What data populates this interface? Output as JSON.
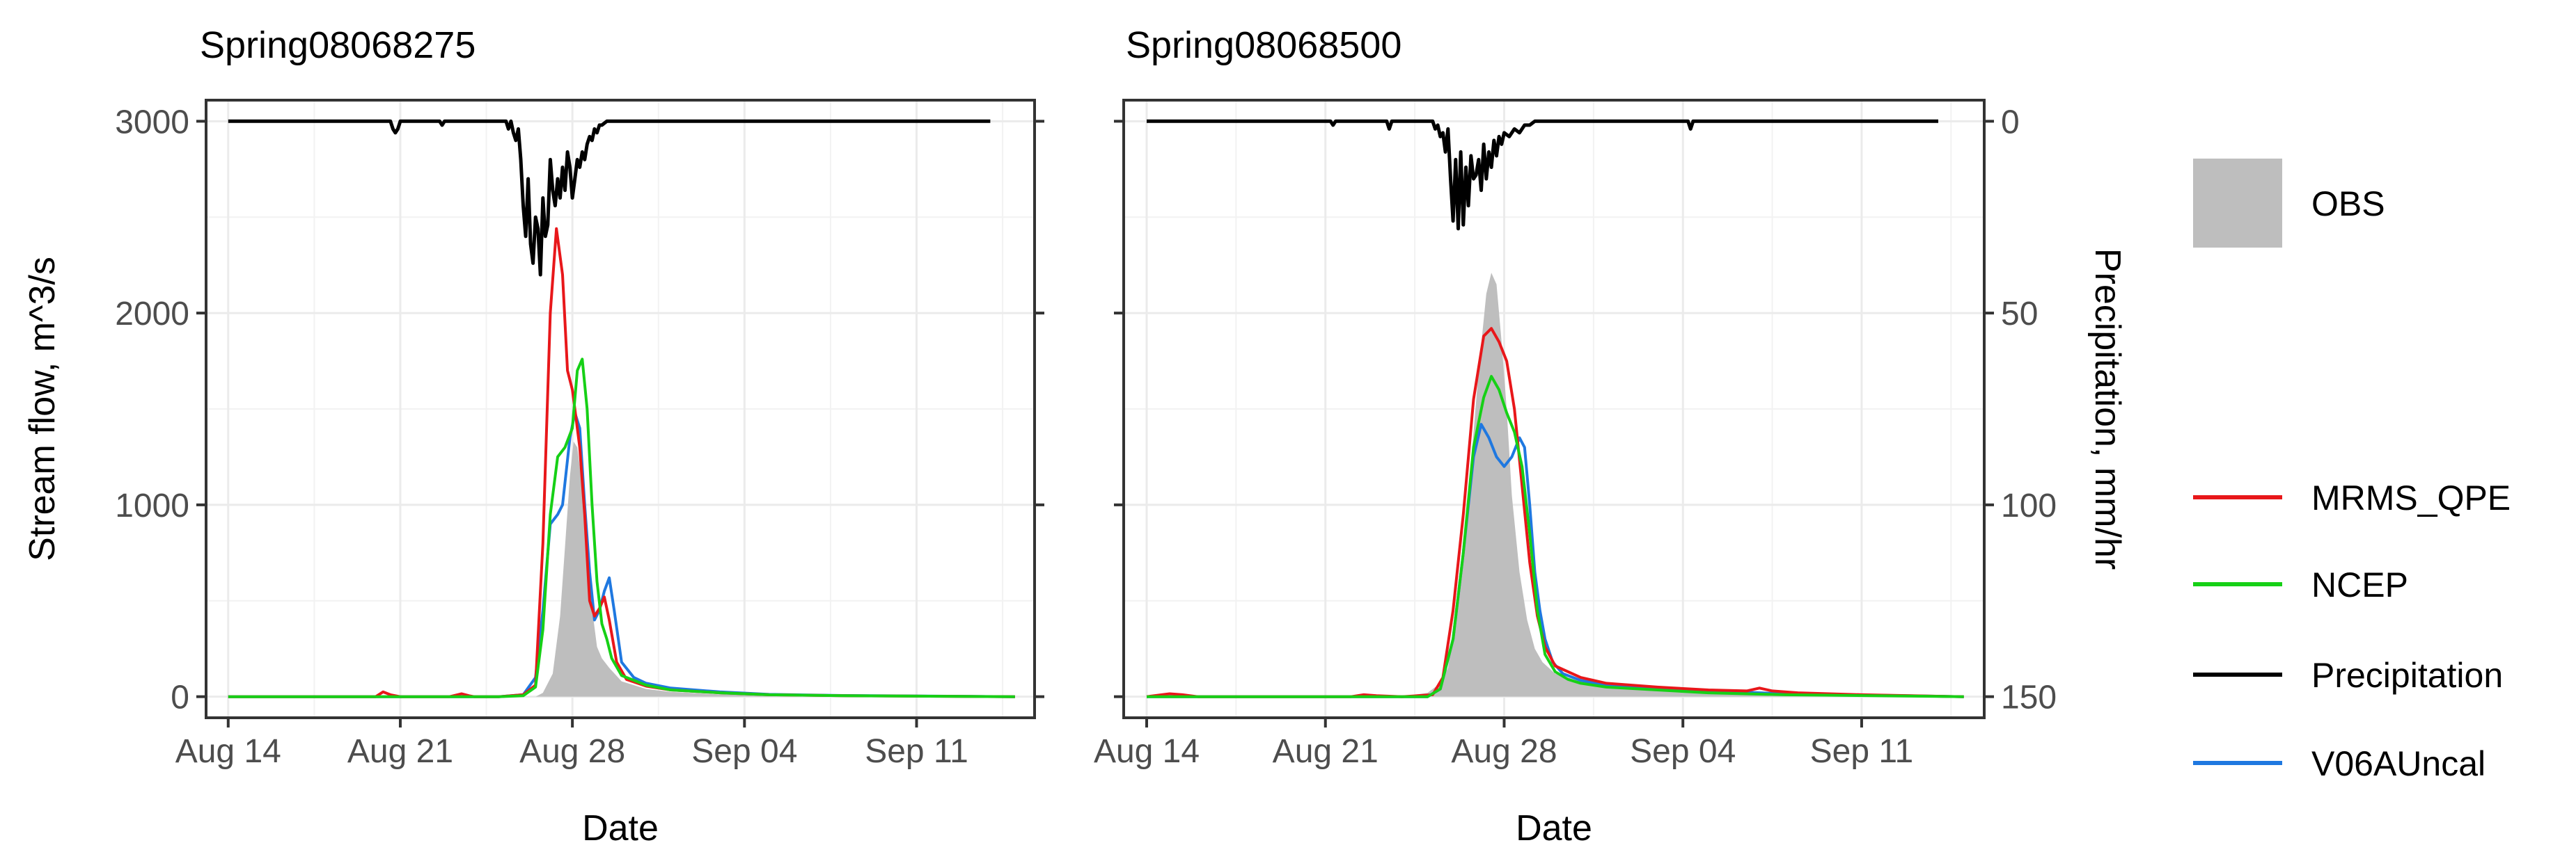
{
  "chart_data": {
    "type": "line",
    "x_axis": {
      "label": "Date",
      "ticks": [
        "Aug 14",
        "Aug 21",
        "Aug 28",
        "Sep 04",
        "Sep 11"
      ],
      "tick_days": [
        0,
        7,
        14,
        21,
        28
      ],
      "range_days": [
        -0.9,
        32.8
      ]
    },
    "y_axis_left": {
      "label": "Stream flow, m^3/s",
      "ticks": [
        "0",
        "1000",
        "2000",
        "3000"
      ],
      "tick_values": [
        0,
        1000,
        2000,
        3000
      ],
      "range": [
        -110,
        3110
      ]
    },
    "y_axis_right": {
      "label": "Precipitation, mm/hr",
      "ticks": [
        "0",
        "50",
        "100",
        "150"
      ],
      "tick_values": [
        0,
        50,
        100,
        150
      ],
      "inverted": true,
      "note": "precipitation hangs downward from the top (0 at 3000 flow, 150 at 0 flow)"
    },
    "grid": true,
    "legend": {
      "placement": "right",
      "entries": [
        {
          "label": "OBS",
          "kind": "area",
          "color": "#bebebe"
        },
        {
          "label": "MRMS_QPE",
          "kind": "line",
          "color": "#e8171a"
        },
        {
          "label": "NCEP",
          "kind": "line",
          "color": "#16d016"
        },
        {
          "label": "Precipitation",
          "kind": "line",
          "color": "#000000"
        },
        {
          "label": "V06AUncal",
          "kind": "line",
          "color": "#1f78e0"
        }
      ]
    },
    "panels": [
      {
        "title": "Spring08068275",
        "series": {
          "OBS": {
            "x": [
              0,
              11,
              12.5,
              12.8,
              13.2,
              13.5,
              13.7,
              13.9,
              14.05,
              14.2,
              14.4,
              14.6,
              14.8,
              15,
              15.2,
              15.5,
              16,
              17,
              18,
              20,
              22,
              25,
              32
            ],
            "y": [
              0,
              0,
              0,
              20,
              120,
              420,
              780,
              1150,
              1330,
              1300,
              1100,
              780,
              460,
              260,
              200,
              150,
              80,
              40,
              25,
              12,
              8,
              3,
              0
            ]
          },
          "MRMS_QPE": {
            "x": [
              0,
              6,
              6.3,
              6.6,
              7,
              9,
              9.5,
              9.8,
              10,
              11,
              12,
              12.5,
              12.8,
              13.1,
              13.35,
              13.6,
              13.8,
              14,
              14.1,
              14.3,
              14.5,
              14.7,
              14.9,
              15.1,
              15.3,
              15.5,
              15.8,
              16.2,
              17,
              18,
              20,
              22,
              25,
              32
            ],
            "y": [
              0,
              0,
              25,
              10,
              0,
              0,
              15,
              5,
              0,
              0,
              10,
              60,
              800,
              2000,
              2440,
              2200,
              1700,
              1600,
              1500,
              1300,
              950,
              500,
              420,
              460,
              520,
              400,
              180,
              90,
              55,
              35,
              20,
              10,
              5,
              0
            ]
          },
          "NCEP": {
            "x": [
              0,
              11,
              12,
              12.5,
              12.8,
              13.1,
              13.4,
              13.7,
              14,
              14.2,
              14.4,
              14.6,
              14.8,
              15,
              15.2,
              15.4,
              15.6,
              16,
              17,
              18,
              20,
              22,
              25,
              32
            ],
            "y": [
              0,
              0,
              5,
              50,
              350,
              950,
              1250,
              1300,
              1400,
              1700,
              1760,
              1500,
              1000,
              600,
              380,
              300,
              200,
              110,
              60,
              35,
              20,
              10,
              5,
              0
            ]
          },
          "V06AUncal": {
            "x": [
              0,
              11,
              12,
              12.5,
              12.8,
              13.1,
              13.4,
              13.6,
              13.9,
              14.1,
              14.3,
              14.5,
              14.7,
              14.9,
              15.1,
              15.3,
              15.5,
              15.7,
              16,
              16.5,
              17,
              18,
              20,
              22,
              25,
              32
            ],
            "y": [
              0,
              0,
              10,
              100,
              450,
              900,
              950,
              1000,
              1350,
              1480,
              1400,
              1000,
              650,
              400,
              450,
              550,
              620,
              450,
              180,
              100,
              70,
              45,
              25,
              12,
              6,
              0
            ]
          },
          "Precipitation": {
            "x": [
              0,
              6.6,
              6.7,
              6.8,
              6.9,
              7,
              8.6,
              8.7,
              8.8,
              11.3,
              11.4,
              11.5,
              11.6,
              11.7,
              11.8,
              11.9,
              12,
              12.1,
              12.2,
              12.3,
              12.4,
              12.5,
              12.6,
              12.7,
              12.8,
              12.9,
              13,
              13.1,
              13.2,
              13.3,
              13.4,
              13.5,
              13.6,
              13.7,
              13.8,
              13.9,
              14,
              14.1,
              14.2,
              14.3,
              14.4,
              14.5,
              14.6,
              14.7,
              14.8,
              14.9,
              15,
              15.1,
              15.2,
              15.4,
              15.6,
              31
            ],
            "y": [
              0,
              0,
              2,
              3,
              2,
              0,
              0,
              1,
              0,
              0,
              2,
              0,
              3,
              5,
              2,
              10,
              22,
              30,
              15,
              32,
              37,
              25,
              28,
              40,
              20,
              30,
              27,
              10,
              18,
              22,
              15,
              20,
              12,
              18,
              8,
              12,
              20,
              15,
              10,
              12,
              8,
              10,
              6,
              4,
              5,
              2,
              3,
              1,
              1,
              0,
              0,
              0
            ]
          }
        }
      },
      {
        "title": "Spring08068500",
        "series": {
          "OBS": {
            "x": [
              0,
              10,
              11,
              11.5,
              11.8,
              12.2,
              12.6,
              13,
              13.3,
              13.5,
              13.7,
              13.9,
              14.1,
              14.3,
              14.6,
              14.9,
              15.2,
              15.5,
              16,
              17,
              18,
              20,
              22,
              25,
              32
            ],
            "y": [
              0,
              0,
              20,
              70,
              150,
              500,
              1050,
              1700,
              2100,
              2210,
              2150,
              1850,
              1500,
              1050,
              650,
              400,
              250,
              180,
              120,
              80,
              60,
              40,
              25,
              12,
              0
            ]
          },
          "MRMS_QPE": {
            "x": [
              0,
              0.6,
              0.9,
              1.4,
              2,
              8,
              8.5,
              9,
              10,
              11.2,
              11.6,
              12,
              12.4,
              12.8,
              13.2,
              13.5,
              13.8,
              14.1,
              14.4,
              14.7,
              15,
              15.3,
              15.6,
              16,
              17,
              18,
              20,
              22,
              23.5,
              24,
              24.5,
              25.5,
              28,
              32
            ],
            "y": [
              0,
              10,
              15,
              10,
              0,
              0,
              10,
              5,
              0,
              10,
              100,
              450,
              950,
              1550,
              1880,
              1920,
              1850,
              1750,
              1500,
              1100,
              700,
              420,
              260,
              160,
              100,
              70,
              50,
              35,
              30,
              45,
              30,
              20,
              10,
              0
            ]
          },
          "NCEP": {
            "x": [
              0,
              11,
              11.5,
              12,
              12.4,
              12.8,
              13.2,
              13.5,
              13.8,
              14.1,
              14.4,
              14.7,
              15,
              15.3,
              15.6,
              16,
              16.5,
              17,
              18,
              20,
              22,
              25,
              32
            ],
            "y": [
              0,
              0,
              40,
              300,
              750,
              1300,
              1560,
              1670,
              1600,
              1480,
              1380,
              1200,
              850,
              450,
              220,
              130,
              90,
              70,
              50,
              35,
              20,
              10,
              0
            ]
          },
          "V06AUncal": {
            "x": [
              0,
              11,
              11.5,
              12,
              12.4,
              12.8,
              13.1,
              13.4,
              13.7,
              14,
              14.3,
              14.6,
              14.8,
              15,
              15.2,
              15.4,
              15.6,
              15.9,
              16.3,
              17,
              18,
              20,
              22,
              25,
              32
            ],
            "y": [
              0,
              0,
              40,
              300,
              750,
              1250,
              1420,
              1350,
              1250,
              1200,
              1250,
              1350,
              1300,
              1000,
              650,
              450,
              300,
              180,
              120,
              85,
              60,
              45,
              30,
              15,
              0
            ]
          },
          "Precipitation": {
            "x": [
              0,
              7.2,
              7.3,
              7.4,
              9.4,
              9.5,
              9.6,
              11.2,
              11.3,
              11.4,
              11.5,
              11.6,
              11.7,
              11.8,
              11.9,
              12,
              12.1,
              12.2,
              12.3,
              12.4,
              12.5,
              12.6,
              12.7,
              12.8,
              12.9,
              13,
              13.1,
              13.2,
              13.3,
              13.4,
              13.5,
              13.6,
              13.7,
              13.8,
              13.9,
              14,
              14.2,
              14.4,
              14.6,
              14.8,
              15,
              15.2,
              15.4,
              21.2,
              21.3,
              21.4,
              31
            ],
            "y": [
              0,
              0,
              1,
              0,
              0,
              2,
              0,
              0,
              2,
              1,
              4,
              3,
              8,
              2,
              15,
              26,
              10,
              28,
              8,
              27,
              12,
              22,
              9,
              15,
              14,
              10,
              18,
              6,
              15,
              8,
              12,
              5,
              9,
              4,
              6,
              3,
              4,
              2,
              3,
              1,
              1,
              0,
              0,
              0,
              2,
              0,
              0
            ]
          }
        }
      }
    ]
  }
}
